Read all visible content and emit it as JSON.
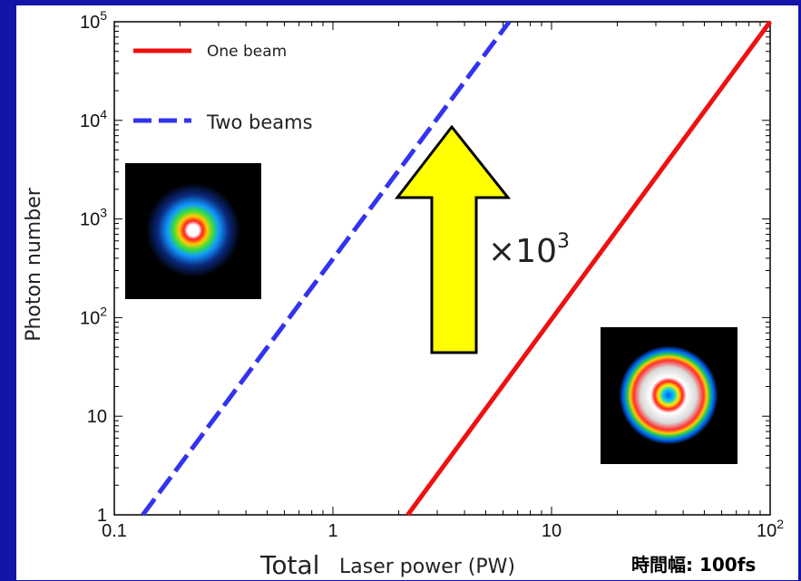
{
  "chart_data": {
    "type": "line",
    "xlabel": "Laser power (PW)",
    "xlabel_prefix": "Total",
    "ylabel": "Photon number",
    "x_scale": "log",
    "y_scale": "log",
    "xlim": [
      0.1,
      100
    ],
    "ylim": [
      1,
      100000
    ],
    "x_ticks": [
      {
        "value": 0.1,
        "label": "0.1"
      },
      {
        "value": 1,
        "label": "1"
      },
      {
        "value": 10,
        "label": "10"
      },
      {
        "value": 100,
        "base": "10",
        "exp": "2"
      }
    ],
    "y_ticks": [
      {
        "value": 1,
        "label": "1"
      },
      {
        "value": 10,
        "label": "10"
      },
      {
        "value": 100,
        "base": "10",
        "exp": "2"
      },
      {
        "value": 1000,
        "base": "10",
        "exp": "3"
      },
      {
        "value": 10000,
        "base": "10",
        "exp": "4"
      },
      {
        "value": 100000,
        "base": "10",
        "exp": "5"
      }
    ],
    "series": [
      {
        "name": "One beam",
        "color": "#ee1111",
        "style": "solid",
        "x": [
          2.2,
          100
        ],
        "y": [
          1,
          100000
        ]
      },
      {
        "name": "Two beams",
        "color": "#3333ee",
        "style": "dashed",
        "x": [
          0.135,
          6.4
        ],
        "y": [
          1,
          100000
        ]
      }
    ],
    "legend": "top-left",
    "annotation": {
      "base": "×10",
      "exp": "3"
    },
    "note": "時間幅: 100fs"
  },
  "colors": {
    "background": "#1414a8",
    "arrow_fill": "#ffff00",
    "arrow_stroke": "#000000"
  }
}
